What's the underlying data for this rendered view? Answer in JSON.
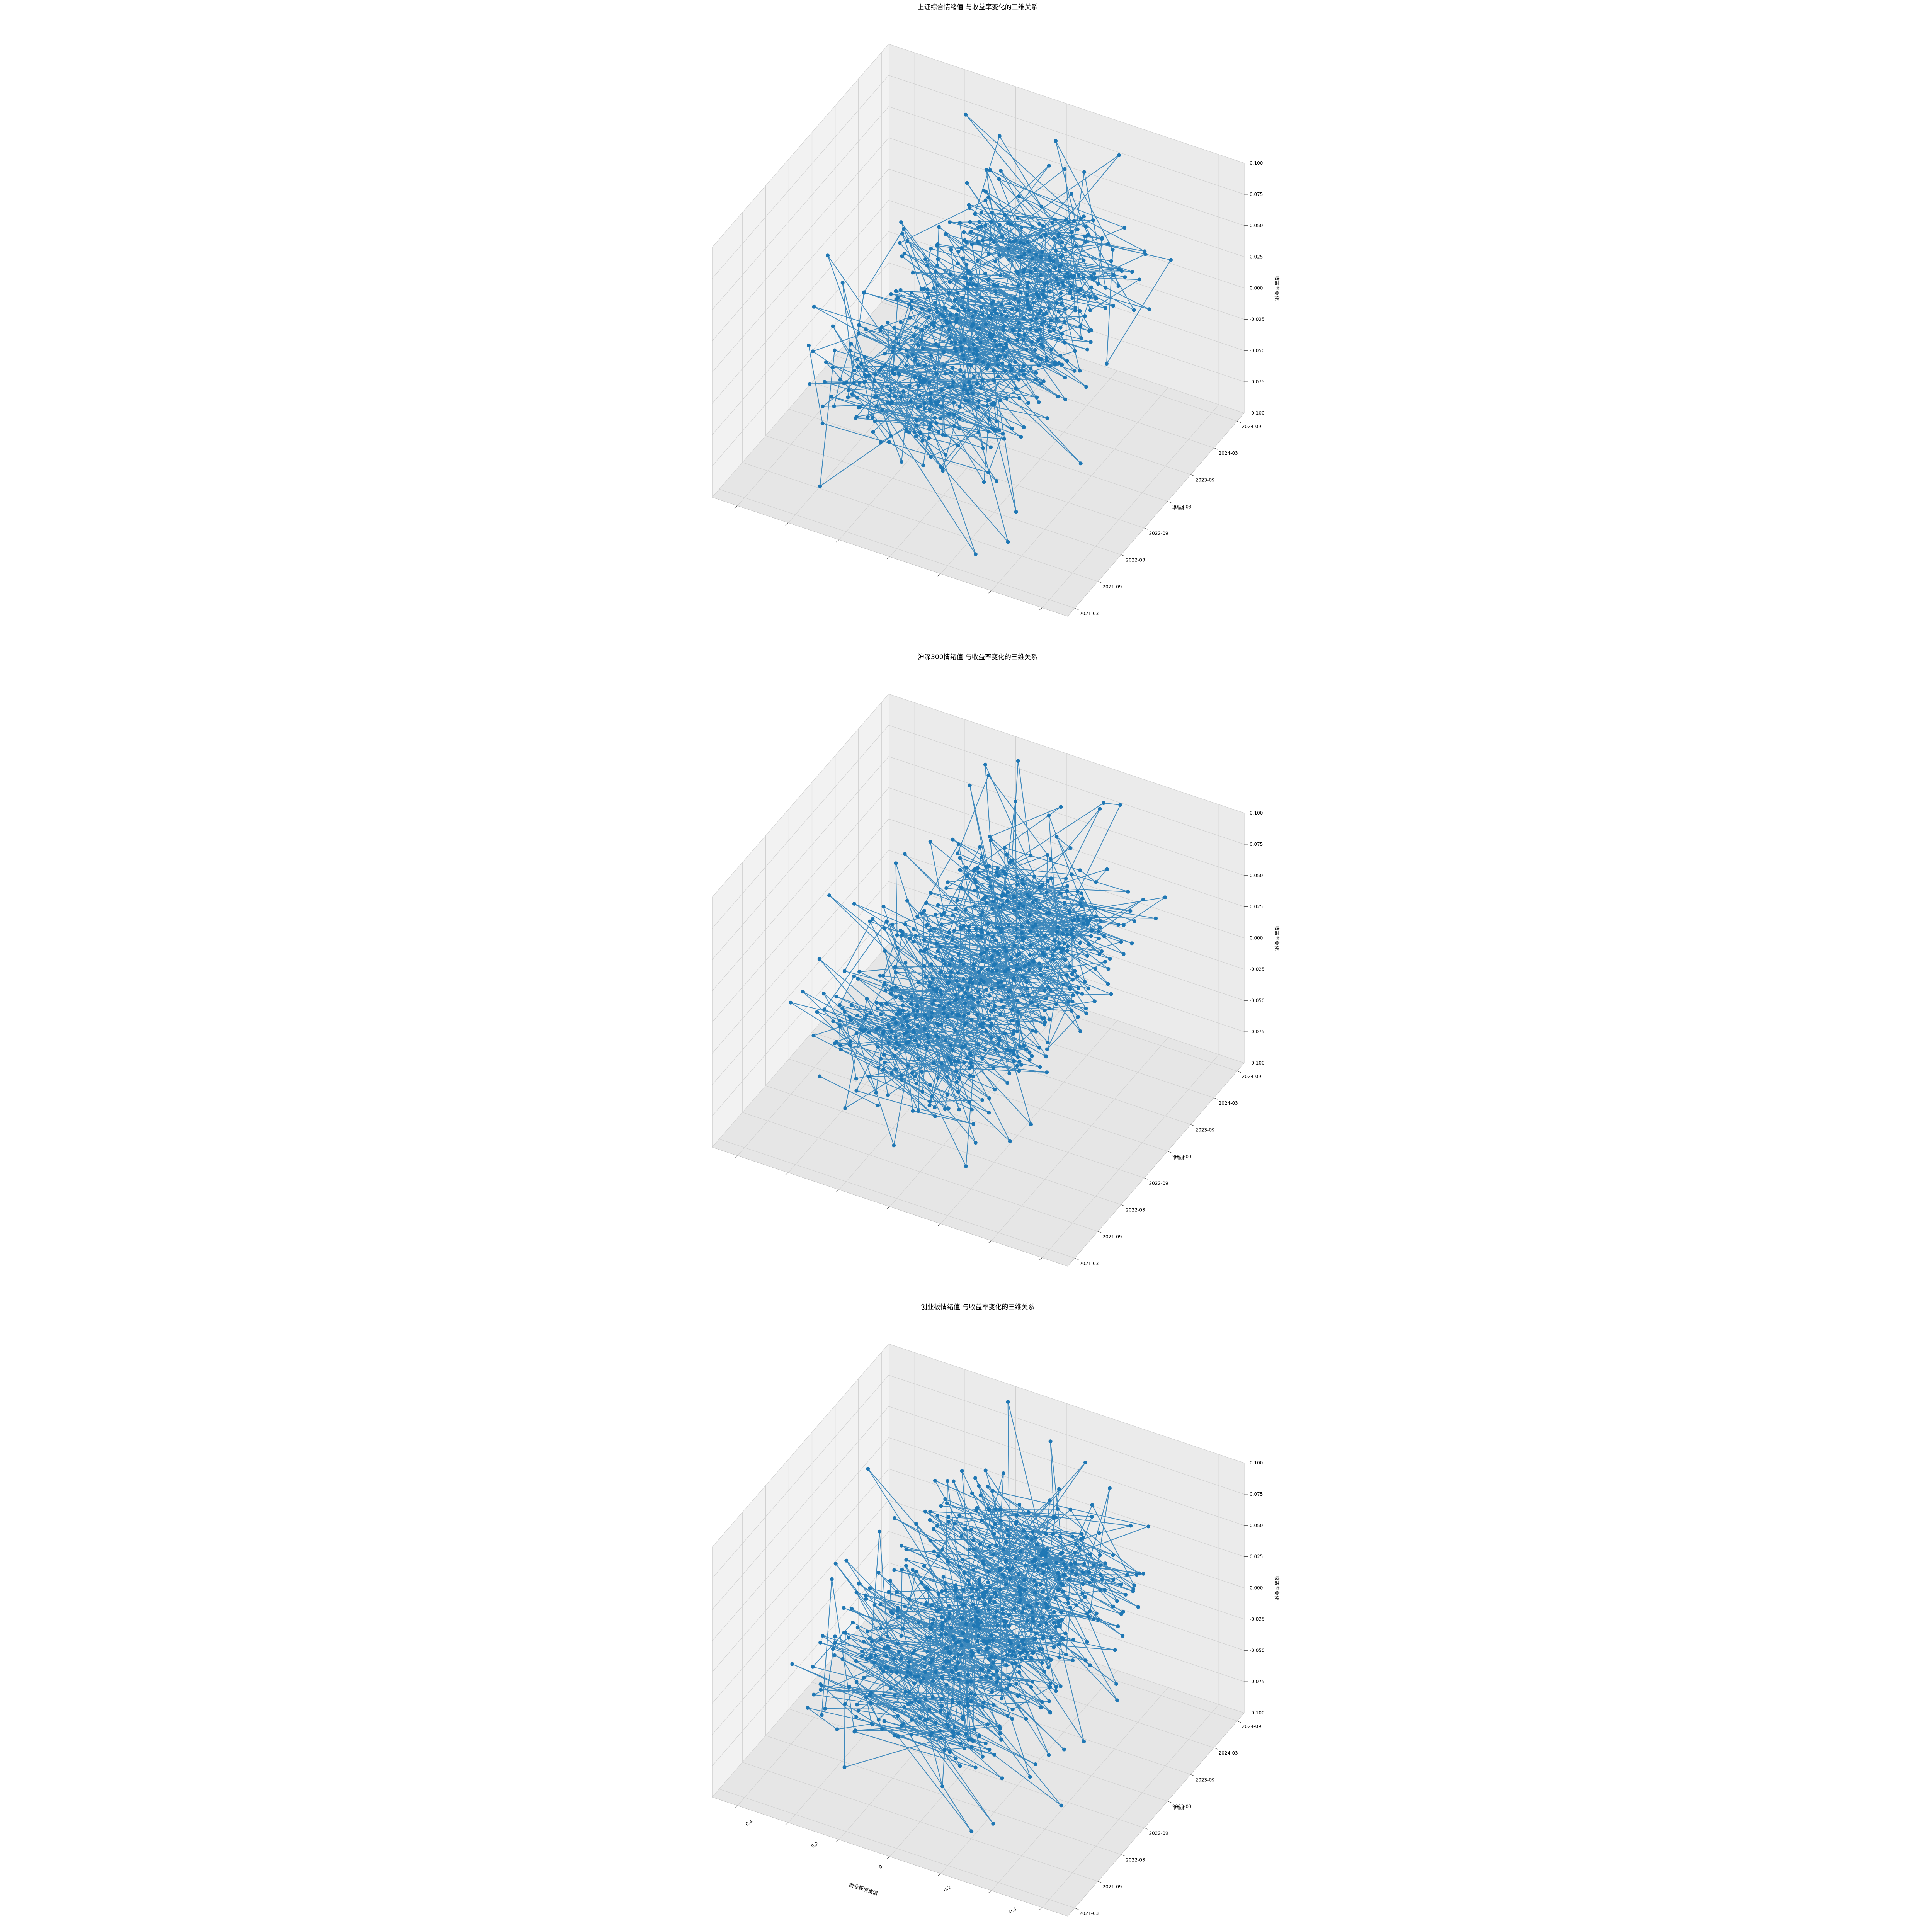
{
  "figure": {
    "line_color": "#1f77b4",
    "pane_colors": [
      "#f2f2f2",
      "#ebebeb",
      "#e6e6e6"
    ],
    "grid_color": "#d0d0d0"
  },
  "chart_data": [
    {
      "type": "scatter",
      "title": "上证综合情绪值 与收益率变化的三维关系",
      "xlabel": "",
      "ylabel": "时间",
      "zlabel": "收益率变化",
      "x_tick_labels_visible": false,
      "xlim": [
        -0.5,
        0.5
      ],
      "time_ticks": [
        "2021-03",
        "2021-09",
        "2022-03",
        "2022-09",
        "2023-03",
        "2023-09",
        "2024-03",
        "2024-09"
      ],
      "z_ticks": [
        "-0.100",
        "-0.075",
        "-0.050",
        "-0.025",
        "0.000",
        "0.025",
        "0.050",
        "0.075",
        "0.100"
      ],
      "zlim": [
        -0.1,
        0.1
      ],
      "grid": true,
      "series": {
        "date_start": "2021-03-01",
        "date_end": "2024-09-30",
        "points": 700,
        "sentiment_range": [
          -0.25,
          0.25
        ],
        "return_range": [
          -0.09,
          0.1
        ]
      }
    },
    {
      "type": "scatter",
      "title": "沪深300情绪值 与收益率变化的三维关系",
      "xlabel": "",
      "ylabel": "时间",
      "zlabel": "收益率变化",
      "x_tick_labels_visible": false,
      "xlim": [
        -0.5,
        0.5
      ],
      "time_ticks": [
        "2021-03",
        "2021-09",
        "2022-03",
        "2022-09",
        "2023-03",
        "2023-09",
        "2024-03",
        "2024-09"
      ],
      "z_ticks": [
        "-0.100",
        "-0.075",
        "-0.050",
        "-0.025",
        "0.000",
        "0.025",
        "0.050",
        "0.075",
        "0.100"
      ],
      "zlim": [
        -0.1,
        0.1
      ],
      "grid": true,
      "series": {
        "date_start": "2021-03-01",
        "date_end": "2024-09-30",
        "points": 700,
        "sentiment_range": [
          -0.25,
          0.25
        ],
        "return_range": [
          -0.09,
          0.1
        ]
      }
    },
    {
      "type": "scatter",
      "title": "创业板情绪值 与收益率变化的三维关系",
      "xlabel": "创业板情绪值",
      "ylabel": "时间",
      "zlabel": "收益率变化",
      "x_tick_labels_visible": true,
      "x_ticks": [
        "0.4",
        "0.2",
        "0",
        "-0.2",
        "-0.4"
      ],
      "xlim": [
        -0.5,
        0.5
      ],
      "time_ticks": [
        "2021-03",
        "2021-09",
        "2022-03",
        "2022-09",
        "2023-03",
        "2023-09",
        "2024-03",
        "2024-09"
      ],
      "z_ticks": [
        "-0.100",
        "-0.075",
        "-0.050",
        "-0.025",
        "0.000",
        "0.025",
        "0.050",
        "0.075",
        "0.100"
      ],
      "zlim": [
        -0.1,
        0.1
      ],
      "grid": true,
      "series": {
        "date_start": "2021-03-01",
        "date_end": "2024-09-30",
        "points": 700,
        "sentiment_range": [
          -0.25,
          0.25
        ],
        "return_range": [
          -0.09,
          0.1
        ]
      }
    }
  ]
}
